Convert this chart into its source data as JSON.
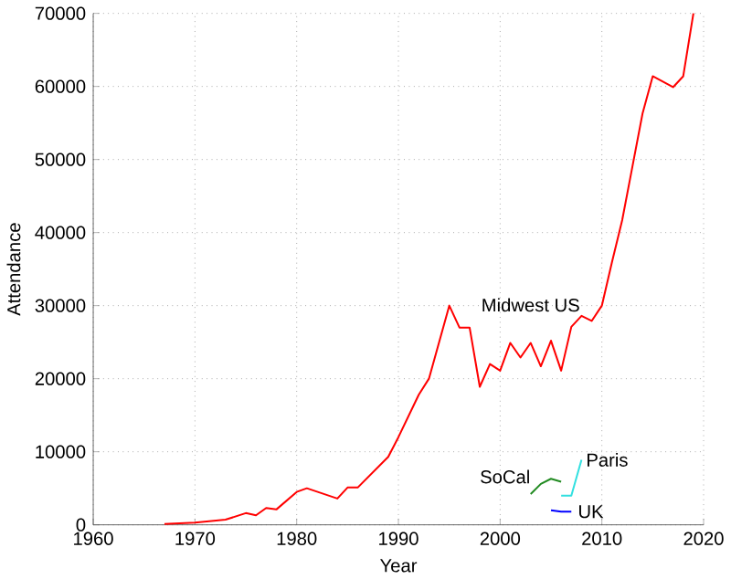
{
  "chart_data": {
    "type": "line",
    "xlabel": "Year",
    "ylabel": "Attendance",
    "xlim": [
      1960,
      2020
    ],
    "ylim": [
      0,
      70000
    ],
    "xticks": [
      1960,
      1970,
      1980,
      1990,
      2000,
      2010,
      2020
    ],
    "yticks": [
      0,
      10000,
      20000,
      30000,
      40000,
      50000,
      60000,
      70000
    ],
    "grid": true,
    "legend": false,
    "marker": "none",
    "line_style": "solid",
    "series": [
      {
        "name": "Midwest US",
        "color": "#ff0000",
        "x": [
          1967,
          1970,
          1973,
          1975,
          1976,
          1977,
          1978,
          1980,
          1981,
          1984,
          1985,
          1986,
          1989,
          1990,
          1992,
          1993,
          1995,
          1996,
          1997,
          1998,
          1999,
          2000,
          2001,
          2002,
          2003,
          2004,
          2005,
          2006,
          2007,
          2008,
          2009,
          2010,
          2011,
          2012,
          2013,
          2014,
          2015,
          2017,
          2018,
          2019
        ],
        "values": [
          100,
          300,
          700,
          1600,
          1300,
          2300,
          2100,
          4500,
          5000,
          3600,
          5100,
          5100,
          9300,
          12000,
          17800,
          20000,
          30000,
          27000,
          27000,
          18900,
          22000,
          21100,
          24900,
          22900,
          24900,
          21700,
          25200,
          21100,
          27100,
          28600,
          27900,
          30000,
          36000,
          41700,
          49000,
          56300,
          61400,
          59900,
          61400,
          70000
        ]
      },
      {
        "name": "SoCal",
        "color": "#228b22",
        "x": [
          2003,
          2004,
          2005,
          2006
        ],
        "values": [
          4200,
          5600,
          6300,
          5900
        ]
      },
      {
        "name": "Paris",
        "color": "#33e0e0",
        "x": [
          2006,
          2007,
          2008
        ],
        "values": [
          4000,
          4000,
          8900
        ]
      },
      {
        "name": "UK",
        "color": "#0000ff",
        "x": [
          2005,
          2006,
          2007
        ],
        "values": [
          2000,
          1800,
          1800
        ]
      }
    ]
  }
}
